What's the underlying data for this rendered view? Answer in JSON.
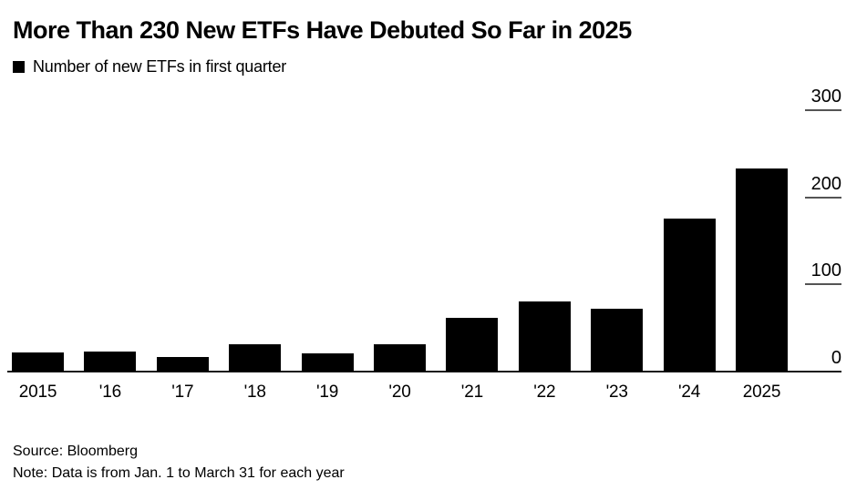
{
  "chart_data": {
    "type": "bar",
    "title": "More Than 230 New ETFs Have Debuted So Far in 2025",
    "legend": "Number of new ETFs in first quarter",
    "categories": [
      "2015",
      "'16",
      "'17",
      "'18",
      "'19",
      "'20",
      "'21",
      "'22",
      "'23",
      "'24",
      "2025"
    ],
    "values": [
      22,
      23,
      17,
      31,
      21,
      31,
      62,
      81,
      72,
      176,
      233
    ],
    "xlabel": "",
    "ylabel": "",
    "ylim": [
      0,
      300
    ],
    "yticks": [
      0,
      100,
      200,
      300
    ],
    "ytick_side": "right",
    "grid": false,
    "legend_position": "top-left",
    "bar_color": "#000000",
    "source": "Source: Bloomberg",
    "note": "Note: Data is from Jan. 1 to March 31 for each year"
  }
}
